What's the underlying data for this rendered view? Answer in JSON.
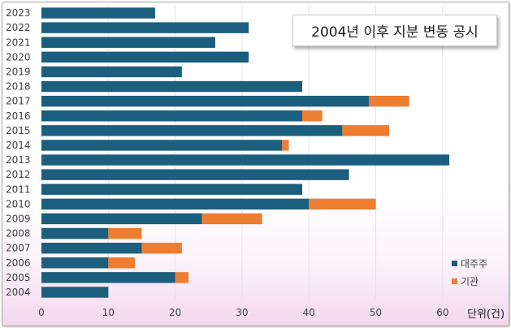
{
  "chart_data": {
    "type": "bar",
    "orientation": "horizontal",
    "stacked": true,
    "title": "2004년 이후 지분 변동 공시",
    "unit_label": "단위(건)",
    "categories": [
      "2023",
      "2022",
      "2021",
      "2020",
      "2019",
      "2018",
      "2017",
      "2016",
      "2015",
      "2014",
      "2013",
      "2012",
      "2011",
      "2010",
      "2009",
      "2008",
      "2007",
      "2006",
      "2005",
      "2004"
    ],
    "series": [
      {
        "name": "대주주",
        "color": "#1b5e7e",
        "values": [
          17,
          31,
          26,
          31,
          21,
          39,
          49,
          39,
          45,
          36,
          61,
          46,
          39,
          40,
          24,
          10,
          15,
          10,
          20,
          10
        ]
      },
      {
        "name": "기관",
        "color": "#ed7d31",
        "values": [
          0,
          0,
          0,
          0,
          0,
          0,
          6,
          3,
          7,
          1,
          0,
          0,
          0,
          10,
          9,
          5,
          6,
          4,
          2,
          0
        ]
      }
    ],
    "xlim": [
      0,
      65
    ],
    "xticks": [
      0,
      10,
      20,
      30,
      40,
      50,
      60
    ],
    "grid": true,
    "legend_position": "bottom-right"
  }
}
